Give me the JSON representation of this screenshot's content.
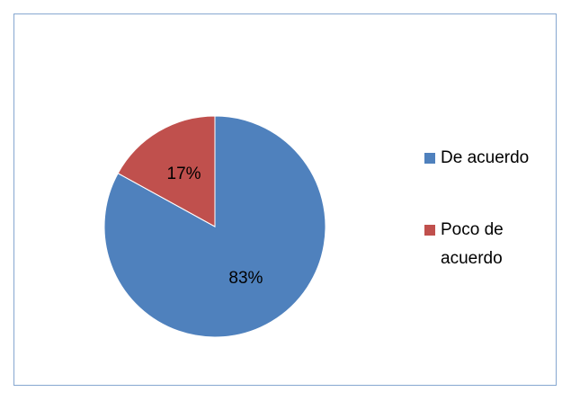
{
  "chart_data": {
    "type": "pie",
    "categories": [
      "De acuerdo",
      "Poco de acuerdo"
    ],
    "values": [
      83,
      17
    ],
    "value_labels": [
      "83%",
      "17%"
    ],
    "colors": [
      "#4f81bd",
      "#c0504d"
    ],
    "legend": "right"
  }
}
